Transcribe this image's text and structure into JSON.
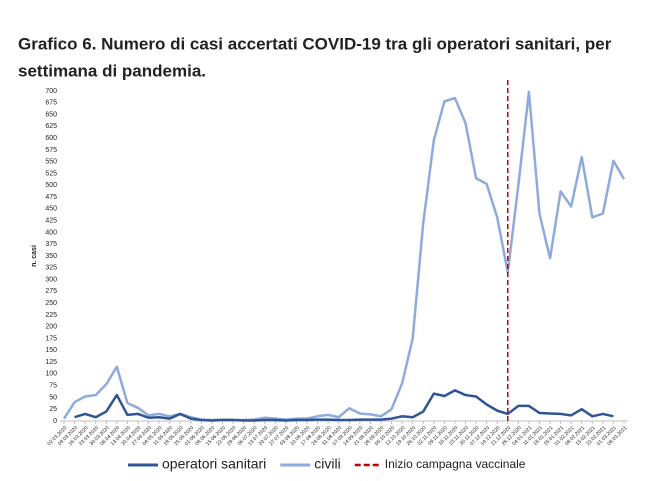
{
  "chart_data": {
    "type": "line",
    "title": "Grafico 6. Numero di casi accertati COVID-19 tra gli operatori sanitari, per",
    "title_line2": "settimana di pandemia.",
    "y_label": "n. casi",
    "categories": [
      "02.03.2020",
      "09.03.2020",
      "16.03.2020",
      "23.03.2020",
      "30.03.2020",
      "06.04.2020",
      "13.04.2020",
      "20.04.2020",
      "27.04.2020",
      "04.05.2020",
      "11.05.2020",
      "18.05.2020",
      "25.05.2020",
      "01.06.2020",
      "08.06.2020",
      "15.06.2020",
      "22.06.2020",
      "29.06.2020",
      "06.07.2020",
      "13.07.2020",
      "20.07.2020",
      "27.07.2020",
      "03.08.2020",
      "10.08.2020",
      "17.08.2020",
      "24.08.2020",
      "31.08.2020",
      "07.09.2020",
      "14.09.2020",
      "21.09.2020",
      "28.09.2020",
      "05.10.2020",
      "12.10.2020",
      "19.10.2020",
      "26.10.2020",
      "02.11.2020",
      "09.11.2020",
      "16.11.2020",
      "23.11.2020",
      "30.11.2020",
      "07.12.2020",
      "14.12.2020",
      "21.12.2020",
      "28.12.2020",
      "04.01.2021",
      "11.01.2021",
      "18.01.2021",
      "25.01.2021",
      "01.02.2021",
      "08.02.2021",
      "15.02.2021",
      "22.02.2021",
      "01.03.2021",
      "08.03.2021"
    ],
    "series": [
      {
        "name": "operatori sanitari",
        "color": "#2f5597",
        "values": [
          null,
          8,
          15,
          8,
          20,
          55,
          13,
          15,
          7,
          8,
          5,
          15,
          5,
          2,
          1,
          2,
          2,
          1,
          1,
          2,
          2,
          1,
          2,
          2,
          3,
          3,
          2,
          2,
          3,
          3,
          3,
          5,
          10,
          8,
          20,
          58,
          53,
          65,
          55,
          52,
          35,
          22,
          15,
          32,
          32,
          17,
          16,
          15,
          12,
          25,
          10,
          15,
          10,
          null
        ]
      },
      {
        "name": "civili",
        "color": "#8faadc",
        "values": [
          5,
          40,
          52,
          55,
          78,
          115,
          38,
          28,
          12,
          15,
          10,
          15,
          8,
          3,
          2,
          3,
          2,
          2,
          3,
          7,
          5,
          3,
          5,
          5,
          10,
          13,
          8,
          27,
          16,
          14,
          10,
          25,
          80,
          175,
          420,
          595,
          678,
          685,
          632,
          515,
          503,
          432,
          315,
          500,
          698,
          440,
          345,
          487,
          455,
          560,
          432,
          440,
          552,
          513
        ]
      }
    ],
    "annotation": {
      "label": "Inizio campagna vaccinale",
      "x": "21.12.2020",
      "color": "#c00000"
    },
    "ylim": [
      0,
      700
    ],
    "yticks": [
      0,
      25,
      50,
      75,
      100,
      125,
      150,
      175,
      200,
      225,
      250,
      275,
      300,
      325,
      350,
      375,
      400,
      425,
      450,
      475,
      500,
      525,
      550,
      575,
      600,
      625,
      650,
      675,
      700
    ],
    "grid": false
  }
}
